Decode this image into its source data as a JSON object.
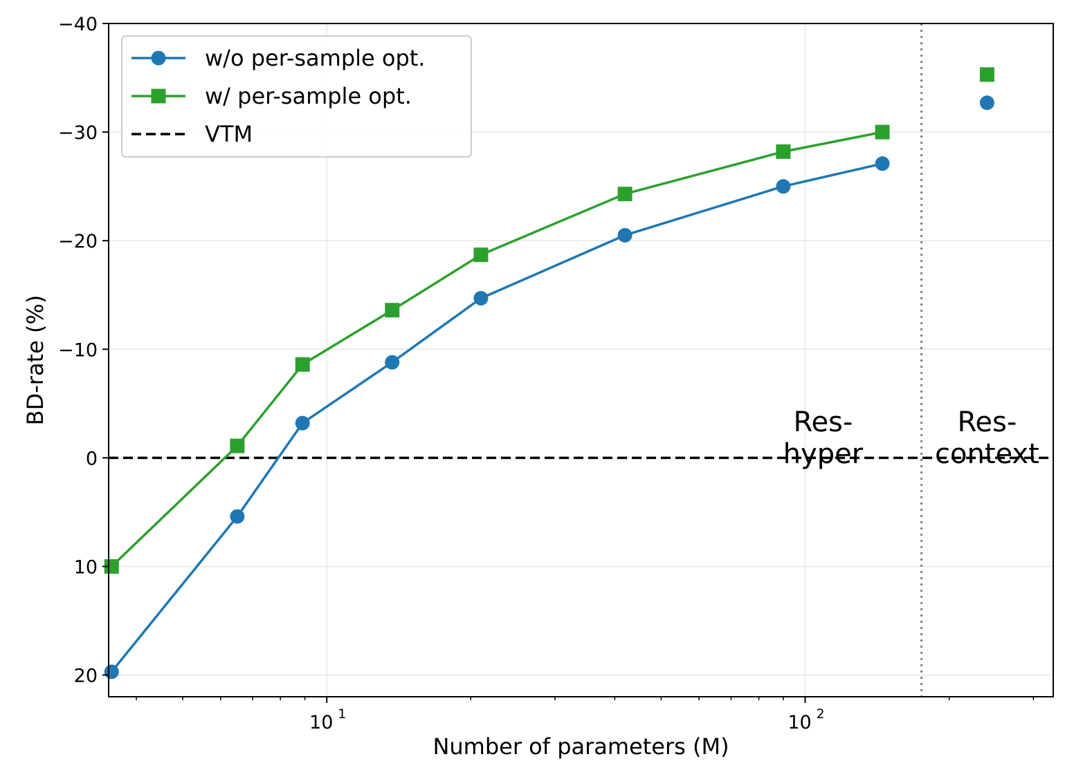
{
  "chart_data": {
    "type": "line",
    "title": "",
    "xlabel": "Number of parameters (M)",
    "ylabel": "BD-rate (%)",
    "x_scale": "log",
    "xlim": [
      3.5,
      330
    ],
    "ylim": [
      22,
      -40
    ],
    "y_inverted": true,
    "grid": true,
    "legend_position": "top-left",
    "yticks": [
      -40,
      -30,
      -20,
      -10,
      0,
      10,
      20
    ],
    "ytick_labels": [
      "−40",
      "−30",
      "−20",
      "−10",
      "0",
      "10",
      "20"
    ],
    "xticks_major": [
      10,
      100
    ],
    "xtick_labels": [
      {
        "base": "10",
        "exp": "1"
      },
      {
        "base": "10",
        "exp": "2"
      }
    ],
    "series": [
      {
        "name": "w/o per-sample opt.",
        "color": "#1f77b4",
        "marker": "circle",
        "x": [
          3.55,
          6.5,
          8.9,
          13.7,
          21,
          42,
          90,
          145
        ],
        "y": [
          19.7,
          5.4,
          -3.2,
          -8.8,
          -14.7,
          -20.5,
          -25.0,
          -27.1
        ]
      },
      {
        "name": "w/ per-sample opt.",
        "color": "#2ca02c",
        "marker": "square",
        "x": [
          3.55,
          6.5,
          8.9,
          13.7,
          21,
          42,
          90,
          145
        ],
        "y": [
          10.0,
          -1.1,
          -8.6,
          -13.6,
          -18.7,
          -24.3,
          -28.2,
          -30.0
        ]
      }
    ],
    "reference_lines": [
      {
        "name": "VTM",
        "type": "horizontal",
        "y": 0,
        "style": "dashed",
        "color": "#000000"
      },
      {
        "type": "vertical",
        "x": 175,
        "style": "dotted",
        "color": "#808080"
      }
    ],
    "extra_points": [
      {
        "series": "w/ per-sample opt.",
        "x": 240,
        "y": -35.3,
        "color": "#2ca02c",
        "marker": "square"
      },
      {
        "series": "w/o per-sample opt.",
        "x": 240,
        "y": -32.7,
        "color": "#1f77b4",
        "marker": "circle"
      }
    ],
    "annotations": [
      {
        "lines": [
          "Res-",
          "hyper"
        ],
        "x": 109,
        "y": -5
      },
      {
        "lines": [
          "Res-",
          "context"
        ],
        "x": 240,
        "y": -5
      }
    ],
    "legend": [
      {
        "label": "w/o per-sample opt.",
        "color": "#1f77b4",
        "marker": "circle",
        "style": "solid"
      },
      {
        "label": "w/ per-sample opt.",
        "color": "#2ca02c",
        "marker": "square",
        "style": "solid"
      },
      {
        "label": "VTM",
        "color": "#000000",
        "marker": "none",
        "style": "dashed"
      }
    ]
  }
}
